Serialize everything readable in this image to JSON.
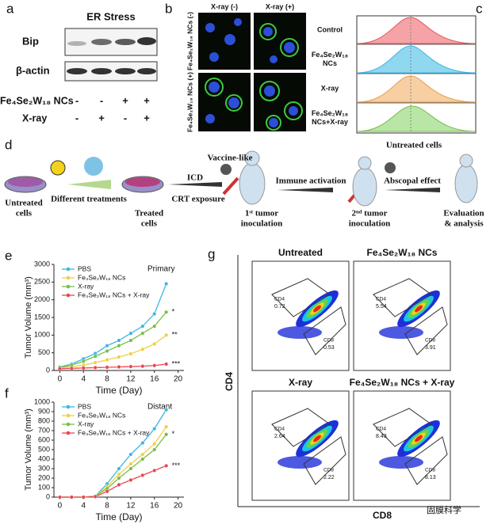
{
  "figure": {
    "a": {
      "label": "a",
      "title": "ER Stress",
      "rows": [
        "Bip",
        "β-actin"
      ],
      "treatments": [
        {
          "name": "Fe₄Se₂W₁₈ NCs",
          "signs": [
            "-",
            "-",
            "+",
            "+"
          ]
        },
        {
          "name": "X-ray",
          "signs": [
            "-",
            "+",
            "-",
            "+"
          ]
        }
      ]
    },
    "b": {
      "label": "b",
      "columns": [
        "X-ray (-)",
        "X-ray (+)"
      ],
      "rows": [
        "Fe₄Se₂W₁₈ NCs (-)",
        "Fe₄Se₂W₁₈ NCs (+)"
      ]
    },
    "c": {
      "label": "c",
      "rows": [
        [
          "Control"
        ],
        [
          "Fe₄Se₂W₁₈",
          "NCs"
        ],
        [
          "X-ray"
        ],
        [
          "Fe₄Se₂W₁₈",
          "NCs+X-ray"
        ]
      ]
    },
    "d": {
      "label": "d",
      "untreated": [
        "Untreated",
        "cells"
      ],
      "treatments": "Different treatments",
      "treated": [
        "Treated",
        "cells"
      ],
      "icd": "ICD",
      "crt": "CRT exposure",
      "vaccine": "Vaccine-like",
      "first": [
        "1ˢᵗ tumor",
        "inoculation"
      ],
      "immune": "Immune activation",
      "second": [
        "2ⁿᵈ tumor",
        "inoculation"
      ],
      "untreated2": "Untreated cells",
      "abscopal": "Abscopal effect",
      "evaluation": [
        "Evaluation",
        "& analysis"
      ]
    },
    "g": {
      "label": "g",
      "y_label": "CD4",
      "x_label": "CD8",
      "gate_labels": [
        "CD4",
        "CD8"
      ],
      "plots": [
        {
          "title": "Untreated",
          "cd4": "0.72",
          "cd8": "0.53"
        },
        {
          "title": "Fe₄Se₂W₁₈ NCs",
          "cd4": "5.54",
          "cd8": "3.91"
        },
        {
          "title": "X-ray",
          "cd4": "2.64",
          "cd8": "2.22"
        },
        {
          "title": "Fe₄Se₂W₁₈ NCs + X-ray",
          "cd4": "8.43",
          "cd8": "8.13"
        }
      ]
    },
    "watermark": "固膜科学"
  },
  "chart_data": [
    {
      "type": "line",
      "panel": "e",
      "annotation": "Primary",
      "stars": [
        "*",
        "**",
        "***"
      ],
      "x_label": "Time (Day)",
      "y_label": "Tumor Volume (mm³)",
      "x": [
        0,
        2,
        4,
        6,
        8,
        10,
        12,
        14,
        16,
        18
      ],
      "xlim": [
        -1,
        21
      ],
      "xticks": [
        0,
        4,
        8,
        12,
        16,
        20
      ],
      "ylim": [
        0,
        3000
      ],
      "yticks": [
        0,
        500,
        1000,
        1500,
        2000,
        2500,
        3000
      ],
      "series": [
        {
          "name": "PBS",
          "color": "#3cb6e3",
          "values": [
            100,
            180,
            330,
            480,
            700,
            850,
            1050,
            1250,
            1600,
            2450
          ]
        },
        {
          "name": "Fe₄Se₂W₁₈ NCs",
          "color": "#f0cf45",
          "values": [
            80,
            100,
            150,
            220,
            300,
            380,
            470,
            600,
            750,
            1000
          ]
        },
        {
          "name": "X-ray",
          "color": "#78be48",
          "values": [
            90,
            150,
            260,
            400,
            550,
            700,
            850,
            1050,
            1250,
            1650
          ]
        },
        {
          "name": "Fe₄Se₂W₁₈ NCs + X-ray",
          "color": "#e8474f",
          "values": [
            50,
            60,
            70,
            80,
            90,
            100,
            110,
            120,
            140,
            180
          ]
        }
      ]
    },
    {
      "type": "line",
      "panel": "f",
      "annotation": "Distant",
      "stars": [
        "*",
        "***"
      ],
      "x_label": "Time (Day)",
      "y_label": "Tumor Volume (mm³)",
      "x": [
        0,
        2,
        4,
        6,
        8,
        10,
        12,
        14,
        16,
        18
      ],
      "xlim": [
        -1,
        21
      ],
      "xticks": [
        0,
        4,
        8,
        12,
        16,
        20
      ],
      "ylim": [
        0,
        1000
      ],
      "yticks": [
        0,
        100,
        200,
        300,
        400,
        500,
        600,
        700,
        800,
        900,
        1000
      ],
      "series": [
        {
          "name": "PBS",
          "color": "#3cb6e3",
          "values": [
            0,
            0,
            0,
            10,
            140,
            300,
            450,
            570,
            720,
            920
          ]
        },
        {
          "name": "Fe₄Se₂W₁₈ NCs",
          "color": "#f0cf45",
          "values": [
            0,
            0,
            0,
            10,
            110,
            240,
            350,
            450,
            560,
            740
          ]
        },
        {
          "name": "X-ray",
          "color": "#78be48",
          "values": [
            0,
            0,
            0,
            10,
            90,
            200,
            300,
            400,
            500,
            660
          ]
        },
        {
          "name": "Fe₄Se₂W₁₈ NCs + X-ray",
          "color": "#e8474f",
          "values": [
            0,
            0,
            0,
            5,
            60,
            130,
            180,
            230,
            280,
            330
          ]
        }
      ]
    }
  ]
}
